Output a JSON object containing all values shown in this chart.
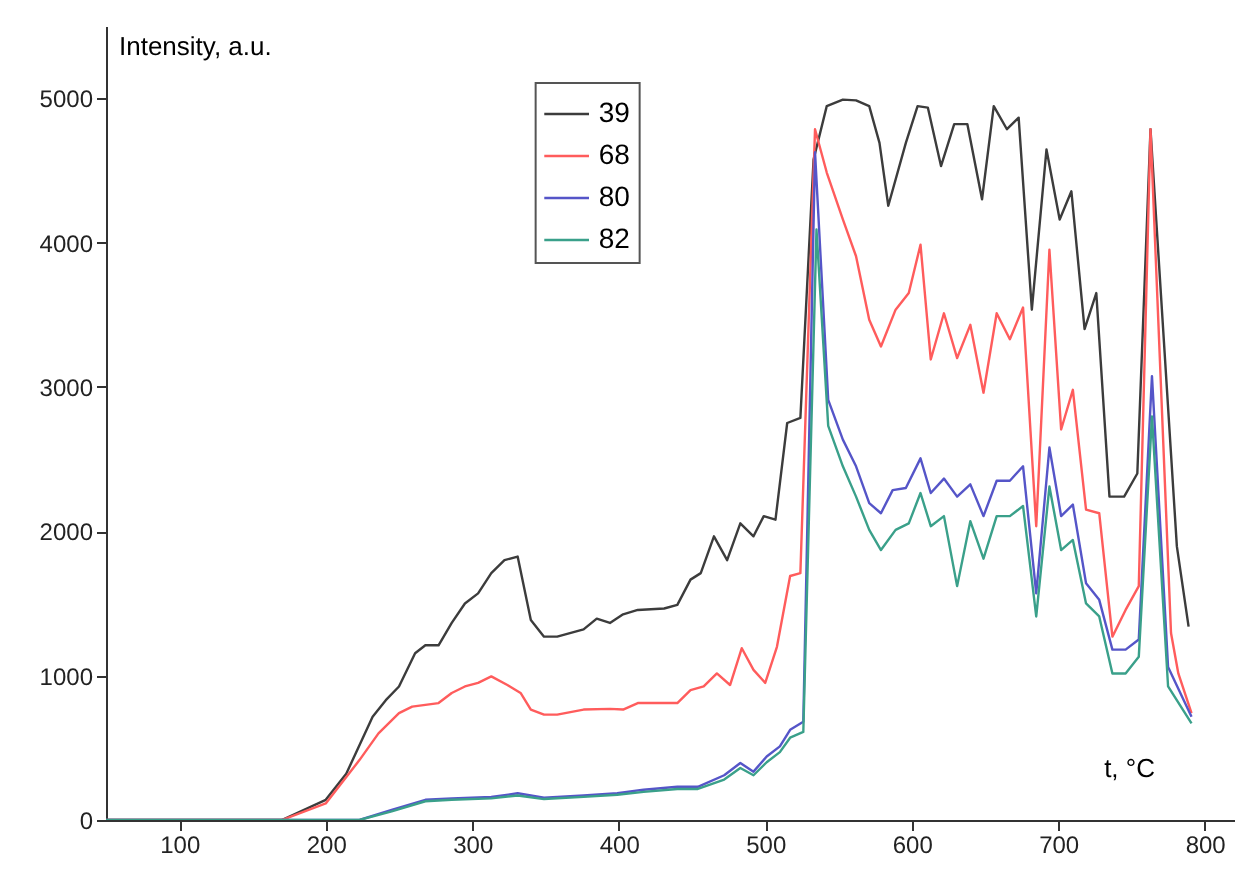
{
  "chart_data": {
    "type": "line",
    "xlabel": "t, °C",
    "ylabel": "Intensity, a.u.",
    "xlim": [
      50,
      820
    ],
    "ylim": [
      0,
      5500
    ],
    "xticks": [
      100,
      200,
      300,
      400,
      500,
      600,
      700,
      800
    ],
    "yticks": [
      0,
      1000,
      2000,
      3000,
      4000,
      5000
    ],
    "legend": "top",
    "grid": false,
    "line_style": "solid",
    "marker": "none",
    "series": [
      {
        "name": "39",
        "color": "#3c3c3c",
        "x": [
          50,
          170,
          200,
          214,
          232,
          241,
          250,
          261,
          268,
          277,
          286,
          295,
          304,
          313,
          322,
          331,
          340,
          349,
          358,
          376,
          385,
          394,
          403,
          413,
          431,
          440,
          449,
          456,
          465,
          474,
          483,
          492,
          499,
          507,
          515,
          524,
          533,
          542,
          553,
          562,
          571,
          578,
          584,
          596,
          604,
          611,
          620,
          629,
          638,
          648,
          656,
          665,
          673,
          682,
          692,
          701,
          709,
          718,
          726,
          735,
          745,
          754,
          763,
          781,
          789
        ],
        "values": [
          0,
          0,
          140,
          320,
          715,
          830,
          925,
          1155,
          1210,
          1210,
          1365,
          1500,
          1570,
          1710,
          1800,
          1825,
          1385,
          1270,
          1270,
          1320,
          1395,
          1365,
          1425,
          1455,
          1465,
          1490,
          1665,
          1710,
          1965,
          1800,
          2055,
          1965,
          2105,
          2080,
          2750,
          2785,
          4575,
          4945,
          4990,
          4985,
          4945,
          4690,
          4255,
          4690,
          4945,
          4935,
          4530,
          4820,
          4820,
          4300,
          4945,
          4785,
          4865,
          3535,
          4645,
          4160,
          4355,
          3400,
          3650,
          2240,
          2240,
          2400,
          4785,
          1895,
          1340
        ]
      },
      {
        "name": "68",
        "color": "#ff5c5c",
        "x": [
          50,
          170,
          200,
          223,
          236,
          250,
          259,
          277,
          286,
          295,
          304,
          313,
          324,
          333,
          340,
          349,
          358,
          376,
          394,
          403,
          413,
          431,
          440,
          449,
          458,
          467,
          476,
          484,
          492,
          500,
          508,
          517,
          524,
          534,
          542,
          553,
          562,
          571,
          579,
          589,
          598,
          606,
          613,
          622,
          631,
          640,
          649,
          658,
          667,
          676,
          685,
          694,
          702,
          710,
          719,
          728,
          737,
          746,
          755,
          763,
          777,
          782,
          791
        ],
        "values": [
          0,
          0,
          115,
          415,
          600,
          740,
          785,
          810,
          880,
          925,
          950,
          995,
          935,
          880,
          765,
          730,
          730,
          765,
          770,
          765,
          810,
          810,
          810,
          900,
          925,
          1015,
          935,
          1190,
          1040,
          950,
          1200,
          1690,
          1710,
          4785,
          4485,
          4160,
          3905,
          3465,
          3280,
          3535,
          3650,
          3985,
          3190,
          3510,
          3200,
          3430,
          2960,
          3510,
          3330,
          3550,
          2035,
          3950,
          2705,
          2980,
          2150,
          2125,
          1270,
          1455,
          1620,
          4785,
          1295,
          1015,
          740
        ]
      },
      {
        "name": "80",
        "color": "#5555c8",
        "x": [
          50,
          223,
          245,
          268,
          286,
          313,
          331,
          349,
          376,
          399,
          417,
          440,
          454,
          472,
          483,
          492,
          501,
          510,
          517,
          526,
          534,
          543,
          553,
          562,
          571,
          579,
          587,
          596,
          606,
          613,
          622,
          631,
          640,
          649,
          658,
          667,
          676,
          685,
          694,
          702,
          710,
          719,
          728,
          737,
          746,
          755,
          764,
          775,
          791
        ],
        "values": [
          0,
          0,
          70,
          140,
          150,
          160,
          185,
          155,
          170,
          185,
          210,
          230,
          230,
          310,
          395,
          335,
          440,
          510,
          625,
          680,
          4625,
          2910,
          2635,
          2450,
          2195,
          2125,
          2285,
          2300,
          2505,
          2265,
          2365,
          2240,
          2325,
          2105,
          2350,
          2350,
          2450,
          1570,
          2580,
          2105,
          2185,
          1640,
          1525,
          1180,
          1180,
          1250,
          3075,
          1060,
          715
        ]
      },
      {
        "name": "82",
        "color": "#3aa08a",
        "x": [
          50,
          223,
          245,
          268,
          286,
          313,
          331,
          349,
          376,
          399,
          417,
          440,
          454,
          472,
          483,
          492,
          501,
          510,
          517,
          526,
          535,
          543,
          553,
          562,
          571,
          579,
          589,
          598,
          606,
          613,
          622,
          631,
          640,
          649,
          658,
          667,
          676,
          685,
          694,
          702,
          710,
          719,
          728,
          737,
          746,
          755,
          764,
          775,
          791
        ],
        "values": [
          0,
          0,
          60,
          130,
          140,
          150,
          170,
          145,
          160,
          175,
          195,
          215,
          215,
          280,
          360,
          310,
          400,
          470,
          570,
          610,
          4090,
          2730,
          2450,
          2240,
          2010,
          1870,
          2010,
          2055,
          2265,
          2035,
          2105,
          1620,
          2070,
          1810,
          2105,
          2105,
          2175,
          1410,
          2310,
          1870,
          1940,
          1500,
          1410,
          1015,
          1015,
          1130,
          2795,
          925,
          670
        ]
      }
    ]
  }
}
